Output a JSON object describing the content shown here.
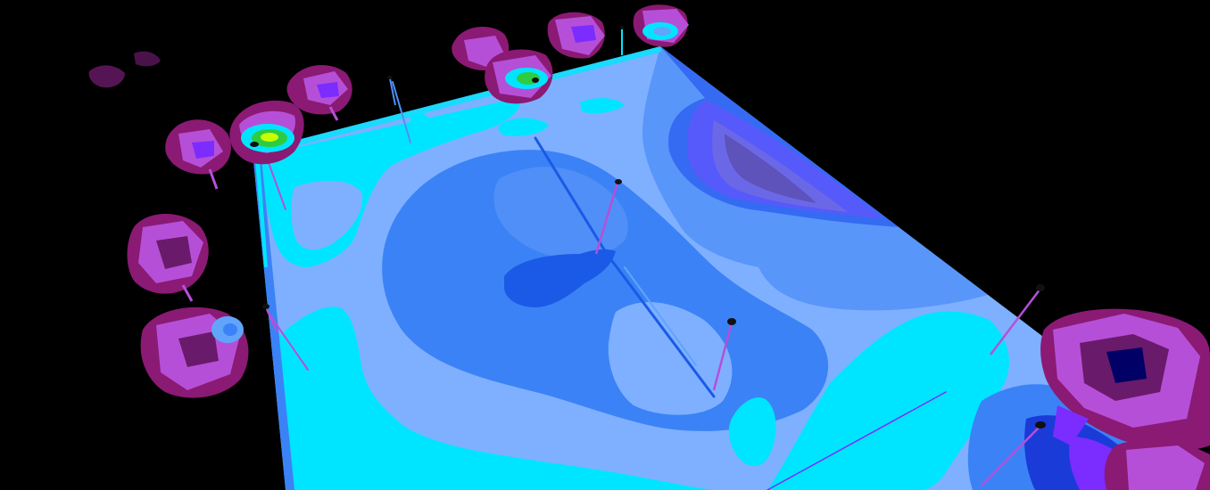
{
  "scene": {
    "view": "perspective-3d",
    "render_style": "false-color illuminance contour map",
    "background": "#000000",
    "contour_palette": [
      "#000066",
      "#1a3bd8",
      "#3b82f6",
      "#60a5fa",
      "#7fb0ff",
      "#00e5ff",
      "#7b2cff",
      "#b64fd8",
      "#8a1a73",
      "#2ecc40",
      "#c8ff00"
    ],
    "elements": [
      "floor-plane",
      "light-pole",
      "luminaire-distribution-solid",
      "pole-shadow-line"
    ]
  }
}
